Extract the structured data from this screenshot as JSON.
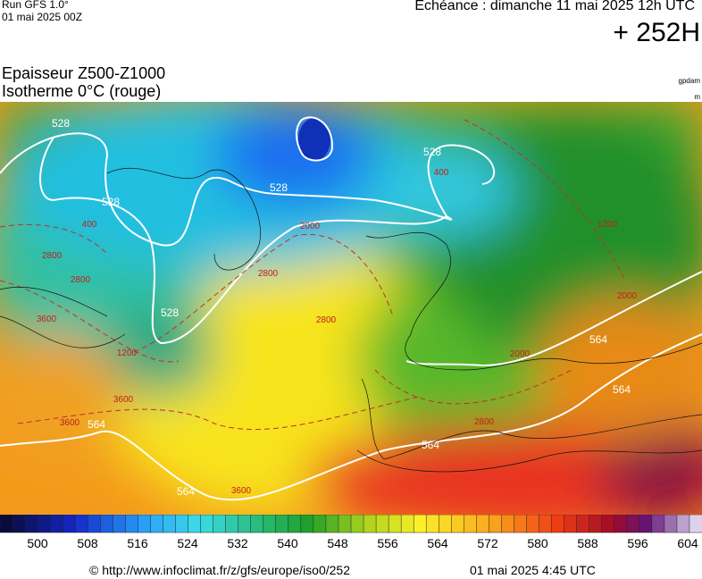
{
  "header": {
    "run": "Run GFS 1.0°",
    "run_date": "01 mai 2025 00Z",
    "valid": "Echéance : dimanche 11 mai 2025 12h UTC",
    "lead": "+ 252H",
    "title": "Epaisseur Z500-Z1000",
    "subtitle": "Isotherme 0°C (rouge)",
    "unit_thickness": "gpdam",
    "unit_iso": "m"
  },
  "map": {
    "contour_labels": [
      "528",
      "528",
      "528",
      "528",
      "528",
      "564",
      "564",
      "564",
      "564",
      "564"
    ],
    "iso_labels": [
      "2000",
      "2800",
      "2800",
      "2800",
      "3600",
      "3600",
      "3600",
      "1200",
      "1200",
      "400",
      "400",
      "2000",
      "2800",
      "2000",
      "2800",
      "3600"
    ]
  },
  "legend": {
    "ticks": [
      500,
      508,
      516,
      524,
      532,
      540,
      548,
      556,
      564,
      572,
      580,
      588,
      596,
      604
    ]
  },
  "footer": {
    "source": "© http://www.infoclimat.fr/z/gfs/europe/iso0/252",
    "generated": "01 mai 2025  4:45 UTC"
  }
}
